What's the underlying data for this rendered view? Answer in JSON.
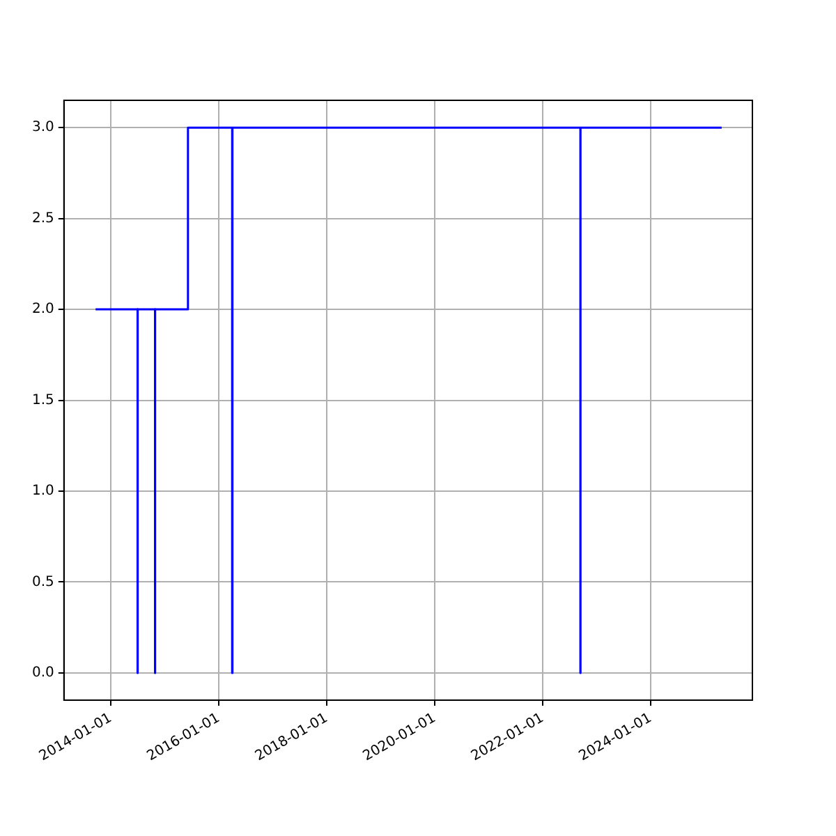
{
  "chart_data": {
    "type": "step",
    "x": [
      "2013-09-20",
      "2014-07-01",
      "2014-07-02",
      "2014-10-27",
      "2014-10-28",
      "2015-06-07",
      "2016-04-01",
      "2016-04-03",
      "2022-09-13",
      "2022-09-14",
      "2025-04-26"
    ],
    "series": [
      {
        "color": "#0000ff",
        "values": [
          2,
          0,
          2,
          0,
          2,
          3,
          0,
          3,
          0,
          3,
          3
        ]
      }
    ],
    "xlim": [
      "2013-02-18",
      "2025-11-20"
    ],
    "xticks": [
      "2014-01-01",
      "2016-01-01",
      "2018-01-01",
      "2020-01-01",
      "2022-01-01",
      "2024-01-01"
    ],
    "ylim": [
      -0.15,
      3.15
    ],
    "yticks": [
      {
        "value": 0,
        "label": "0.0"
      },
      {
        "value": 0.5,
        "label": "0.5"
      },
      {
        "value": 1,
        "label": "1.0"
      },
      {
        "value": 1.5,
        "label": "1.5"
      },
      {
        "value": 2,
        "label": "2.0"
      },
      {
        "value": 2.5,
        "label": "2.5"
      },
      {
        "value": 3,
        "label": "3.0"
      }
    ],
    "grid": true,
    "legend": false
  }
}
